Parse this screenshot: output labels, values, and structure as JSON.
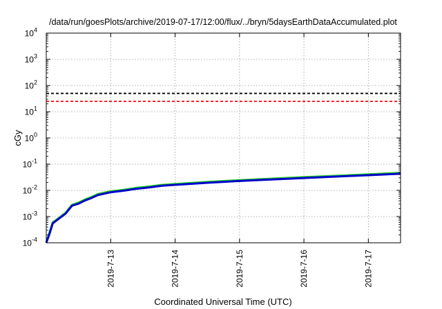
{
  "chart_data": {
    "type": "line",
    "title": "/data/run/goesPlots/archive/2019-07-17/12:00/flux/../bryn/5daysEarthDataAccumulated.plot",
    "xlabel": "Coordinated Universal Time (UTC)",
    "ylabel": "cGy",
    "x_unit": "days",
    "xlim": [
      0,
      5.5
    ],
    "x_ticks": [
      {
        "label": "2019-7-13",
        "x": 1.0
      },
      {
        "label": "2019-7-14",
        "x": 2.0
      },
      {
        "label": "2019-7-15",
        "x": 3.0
      },
      {
        "label": "2019-7-16",
        "x": 4.0
      },
      {
        "label": "2019-7-17",
        "x": 5.0
      }
    ],
    "y_scale": "log",
    "ylim": [
      0.0001,
      10000
    ],
    "y_ticks": [
      {
        "base": "10",
        "exp": "-4",
        "value": 0.0001
      },
      {
        "base": "10",
        "exp": "-3",
        "value": 0.001
      },
      {
        "base": "10",
        "exp": "-2",
        "value": 0.01
      },
      {
        "base": "10",
        "exp": "-1",
        "value": 0.1
      },
      {
        "base": "10",
        "exp": "0",
        "value": 1
      },
      {
        "base": "10",
        "exp": "1",
        "value": 10
      },
      {
        "base": "10",
        "exp": "2",
        "value": 100
      },
      {
        "base": "10",
        "exp": "3",
        "value": 1000
      },
      {
        "base": "10",
        "exp": "4",
        "value": 10000
      }
    ],
    "grid": true,
    "legend": "none",
    "thresholds": [
      {
        "value": 50,
        "color": "#000000",
        "style": "dashed"
      },
      {
        "value": 25,
        "color": "#ff0000",
        "style": "dashed"
      }
    ],
    "series": [
      {
        "color": "#22cc22",
        "points": [
          [
            0.0,
            0.0001
          ],
          [
            0.05,
            0.00025
          ],
          [
            0.1,
            0.0006
          ],
          [
            0.2,
            0.0009
          ],
          [
            0.3,
            0.0014
          ],
          [
            0.4,
            0.0028
          ],
          [
            0.5,
            0.0034
          ],
          [
            0.6,
            0.0045
          ],
          [
            0.7,
            0.0056
          ],
          [
            0.8,
            0.0072
          ],
          [
            1.0,
            0.0092
          ],
          [
            1.2,
            0.0105
          ],
          [
            1.4,
            0.0125
          ],
          [
            1.6,
            0.014
          ],
          [
            1.8,
            0.0162
          ],
          [
            2.0,
            0.0175
          ],
          [
            2.5,
            0.021
          ],
          [
            3.0,
            0.0245
          ],
          [
            3.5,
            0.028
          ],
          [
            4.0,
            0.032
          ],
          [
            4.5,
            0.036
          ],
          [
            5.0,
            0.041
          ],
          [
            5.5,
            0.047
          ]
        ]
      },
      {
        "color": "#0000cc",
        "points": [
          [
            0.0,
            0.0001
          ],
          [
            0.05,
            0.00022
          ],
          [
            0.1,
            0.00055
          ],
          [
            0.2,
            0.00085
          ],
          [
            0.3,
            0.0013
          ],
          [
            0.4,
            0.0026
          ],
          [
            0.5,
            0.0031
          ],
          [
            0.6,
            0.0041
          ],
          [
            0.7,
            0.0051
          ],
          [
            0.8,
            0.0066
          ],
          [
            1.0,
            0.0085
          ],
          [
            1.2,
            0.0097
          ],
          [
            1.4,
            0.0115
          ],
          [
            1.6,
            0.013
          ],
          [
            1.8,
            0.015
          ],
          [
            2.0,
            0.0162
          ],
          [
            2.5,
            0.0195
          ],
          [
            3.0,
            0.0228
          ],
          [
            3.5,
            0.026
          ],
          [
            4.0,
            0.0295
          ],
          [
            4.5,
            0.0335
          ],
          [
            5.0,
            0.038
          ],
          [
            5.5,
            0.043
          ]
        ]
      }
    ]
  }
}
